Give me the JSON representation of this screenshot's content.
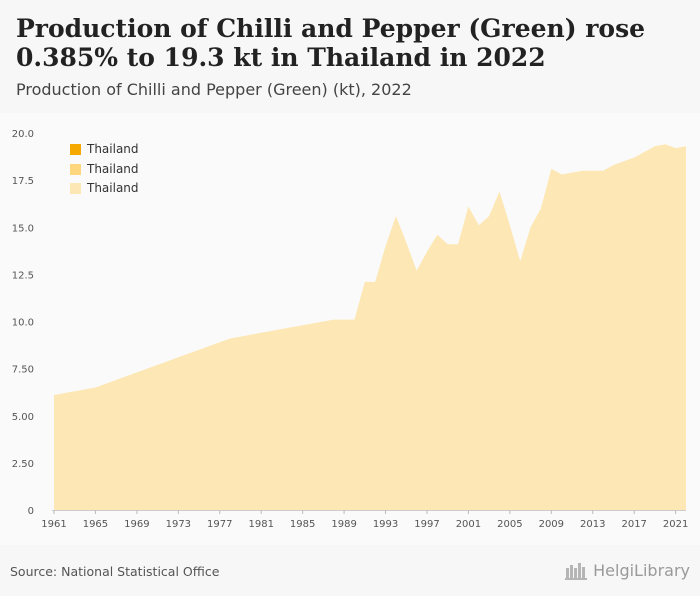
{
  "header": {
    "title": "Production of Chilli and Pepper (Green) rose 0.385% to 19.3 kt in Thailand in 2022",
    "subtitle": "Production of Chilli and Pepper (Green) (kt), 2022"
  },
  "footer": {
    "source": "Source: National Statistical Office",
    "brand": "HelgiLibrary"
  },
  "colors": {
    "area": "#fde7b4",
    "legend": [
      "#f5a800",
      "#fdd67d",
      "#fde7b4"
    ]
  },
  "chart_data": {
    "type": "area",
    "title": "Production of Chilli and Pepper (Green) rose 0.385% to 19.3 kt in Thailand in 2022",
    "subtitle": "Production of Chilli and Pepper (Green) (kt), 2022",
    "legend": [
      "Thailand",
      "Thailand",
      "Thailand"
    ],
    "legend_position": "top-left",
    "grid": false,
    "xlim": [
      1961,
      2022
    ],
    "ylim": [
      0,
      20
    ],
    "y_ticks": [
      "0",
      "2.50",
      "5.00",
      "7.50",
      "10.0",
      "12.5",
      "15.0",
      "17.5",
      "20.0"
    ],
    "y_tick_values": [
      0,
      2.5,
      5,
      7.5,
      10,
      12.5,
      15,
      17.5,
      20
    ],
    "x_ticks": [
      "1961",
      "1965",
      "1969",
      "1973",
      "1977",
      "1981",
      "1985",
      "1989",
      "1993",
      "1997",
      "2001",
      "2005",
      "2009",
      "2013",
      "2017",
      "2021"
    ],
    "x_tick_values": [
      1961,
      1965,
      1969,
      1973,
      1977,
      1981,
      1985,
      1989,
      1993,
      1997,
      2001,
      2005,
      2009,
      2013,
      2017,
      2021
    ],
    "series": [
      {
        "name": "Thailand",
        "x": [
          1961,
          1962,
          1963,
          1964,
          1965,
          1966,
          1967,
          1968,
          1969,
          1970,
          1971,
          1972,
          1973,
          1974,
          1975,
          1976,
          1977,
          1978,
          1979,
          1980,
          1981,
          1982,
          1983,
          1984,
          1985,
          1986,
          1987,
          1988,
          1989,
          1990,
          1991,
          1992,
          1993,
          1994,
          1995,
          1996,
          1997,
          1998,
          1999,
          2000,
          2001,
          2002,
          2003,
          2004,
          2005,
          2006,
          2007,
          2008,
          2009,
          2010,
          2011,
          2012,
          2013,
          2014,
          2015,
          2016,
          2017,
          2018,
          2019,
          2020,
          2021,
          2022
        ],
        "values": [
          6.1,
          6.2,
          6.3,
          6.4,
          6.5,
          6.7,
          6.9,
          7.1,
          7.3,
          7.5,
          7.7,
          7.9,
          8.1,
          8.3,
          8.5,
          8.7,
          8.9,
          9.1,
          9.2,
          9.3,
          9.4,
          9.5,
          9.6,
          9.7,
          9.8,
          9.9,
          10.0,
          10.1,
          10.1,
          10.1,
          12.1,
          12.1,
          14.0,
          15.6,
          14.2,
          12.7,
          13.7,
          14.6,
          14.1,
          14.1,
          16.1,
          15.1,
          15.6,
          16.9,
          15.1,
          13.2,
          15.0,
          16.0,
          18.1,
          17.8,
          17.9,
          18.0,
          18.0,
          18.0,
          18.3,
          18.5,
          18.7,
          19.0,
          19.3,
          19.4,
          19.2,
          19.3
        ]
      }
    ]
  }
}
